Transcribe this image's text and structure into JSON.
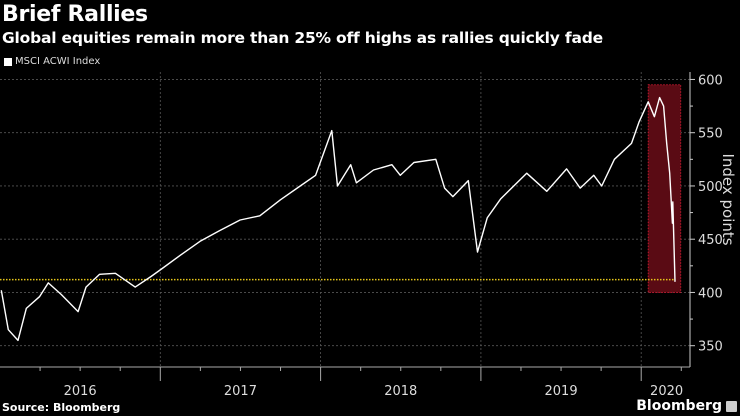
{
  "chart_data": {
    "type": "line",
    "title": "Brief Rallies",
    "subtitle": "Global equities remain more than 25% off highs as rallies quickly fade",
    "ylabel": "Index points",
    "xlabel": "",
    "ylim": [
      330,
      607
    ],
    "yticks": [
      350,
      400,
      450,
      500,
      550,
      600
    ],
    "xticks": [
      "2016",
      "2017",
      "2018",
      "2019",
      "2020"
    ],
    "grid": true,
    "legend_position": "top-left",
    "series": [
      {
        "name": "MSCI ACWI Index",
        "color": "#ffffff",
        "points": [
          [
            "2016-01-04",
            402
          ],
          [
            "2016-01-20",
            365
          ],
          [
            "2016-02-11",
            355
          ],
          [
            "2016-03-01",
            385
          ],
          [
            "2016-03-31",
            396
          ],
          [
            "2016-04-20",
            409
          ],
          [
            "2016-05-20",
            398
          ],
          [
            "2016-06-27",
            382
          ],
          [
            "2016-07-15",
            405
          ],
          [
            "2016-08-15",
            417
          ],
          [
            "2016-09-20",
            418
          ],
          [
            "2016-11-04",
            405
          ],
          [
            "2016-12-10",
            415
          ],
          [
            "2017-01-03",
            422
          ],
          [
            "2017-02-15",
            435
          ],
          [
            "2017-04-01",
            448
          ],
          [
            "2017-05-15",
            458
          ],
          [
            "2017-07-01",
            468
          ],
          [
            "2017-08-15",
            472
          ],
          [
            "2017-10-01",
            487
          ],
          [
            "2017-11-15",
            500
          ],
          [
            "2017-12-20",
            510
          ],
          [
            "2018-01-26",
            552
          ],
          [
            "2018-02-08",
            500
          ],
          [
            "2018-03-10",
            520
          ],
          [
            "2018-03-23",
            503
          ],
          [
            "2018-05-01",
            515
          ],
          [
            "2018-06-12",
            520
          ],
          [
            "2018-07-01",
            510
          ],
          [
            "2018-08-01",
            522
          ],
          [
            "2018-09-20",
            525
          ],
          [
            "2018-10-10",
            498
          ],
          [
            "2018-10-29",
            490
          ],
          [
            "2018-12-03",
            505
          ],
          [
            "2018-12-24",
            438
          ],
          [
            "2019-01-15",
            470
          ],
          [
            "2019-02-15",
            488
          ],
          [
            "2019-04-15",
            512
          ],
          [
            "2019-05-31",
            495
          ],
          [
            "2019-07-15",
            516
          ],
          [
            "2019-08-15",
            498
          ],
          [
            "2019-09-15",
            510
          ],
          [
            "2019-10-03",
            500
          ],
          [
            "2019-11-01",
            525
          ],
          [
            "2019-12-10",
            540
          ],
          [
            "2019-12-27",
            560
          ],
          [
            "2020-01-17",
            579
          ],
          [
            "2020-01-31",
            565
          ],
          [
            "2020-02-12",
            583
          ],
          [
            "2020-02-21",
            575
          ],
          [
            "2020-02-28",
            540
          ],
          [
            "2020-03-06",
            512
          ],
          [
            "2020-03-12",
            465
          ],
          [
            "2020-03-13",
            485
          ],
          [
            "2020-03-18",
            410
          ]
        ]
      }
    ],
    "annotations": {
      "reference_line": {
        "value": 412,
        "color": "#e6c619",
        "style": "dotted"
      },
      "highlight_box": {
        "from": "2020-01-17",
        "to": "2020-03-31",
        "low": 400,
        "high": 595,
        "color": "#5a0b14",
        "border": "#c0182e"
      }
    }
  },
  "footer": {
    "source": "Source: Bloomberg",
    "brand": "Bloomberg"
  }
}
